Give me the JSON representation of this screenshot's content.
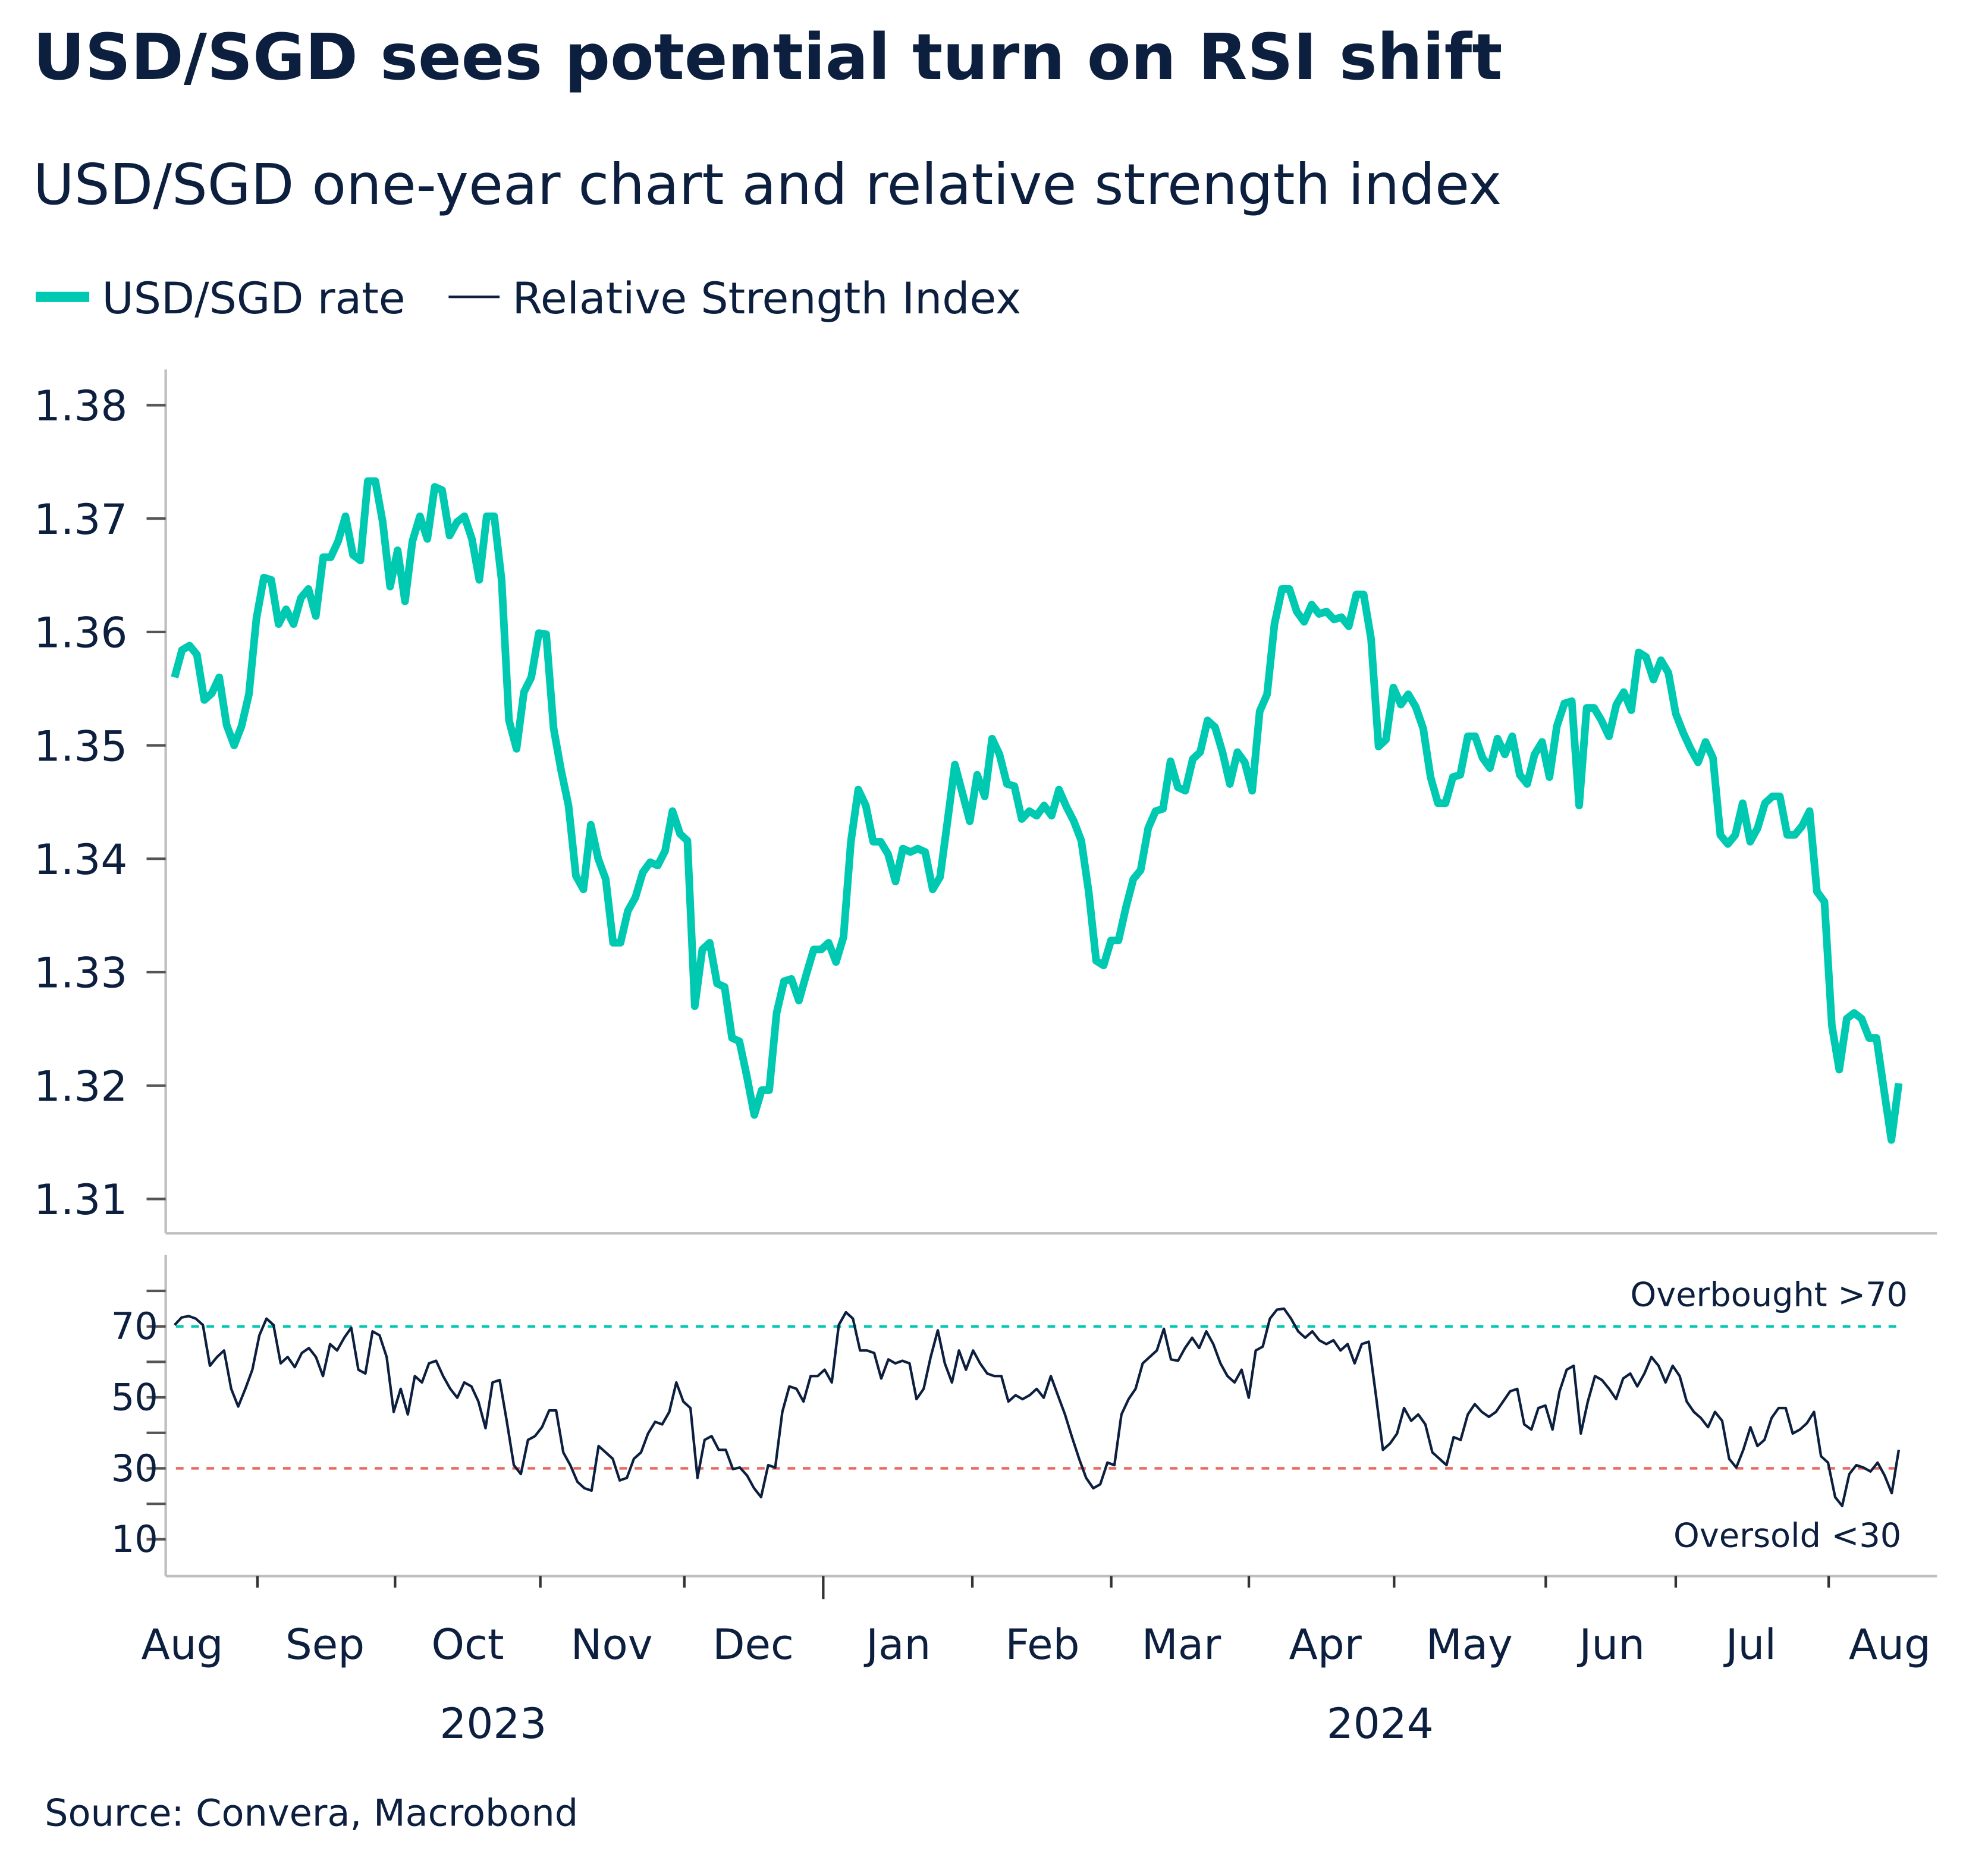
{
  "title": "USD/SGD sees potential turn on RSI shift",
  "subtitle": "USD/SGD one-year chart and relative strength index",
  "source": "Source: Convera, Macrobond",
  "colors": {
    "rate": "#00c9b1",
    "rsi": "#0c1f3f",
    "overbought": "#00c9b1",
    "oversold": "#e8695e",
    "axis": "#bfbfbf"
  },
  "chart_data": [
    {
      "type": "line",
      "panel": "top",
      "legend": [
        {
          "label": "USD/SGD rate"
        },
        {
          "label": "Relative Strength Index"
        }
      ],
      "legend_placement": "top-left",
      "date_range": [
        "2023-08-14",
        "2024-08-15"
      ],
      "ylim": [
        1.307,
        1.383
      ],
      "yticks": [
        "1.31",
        "1.32",
        "1.33",
        "1.34",
        "1.35",
        "1.36",
        "1.37",
        "1.38"
      ],
      "grid": false,
      "series": [
        {
          "name": "USD/SGD rate",
          "values": [
            1.356,
            1.3584,
            1.3588,
            1.358,
            1.354,
            1.3546,
            1.356,
            1.3518,
            1.35,
            1.3517,
            1.3545,
            1.3612,
            1.3648,
            1.3646,
            1.3607,
            1.362,
            1.3607,
            1.363,
            1.3638,
            1.3614,
            1.3666,
            1.3666,
            1.368,
            1.3702,
            1.3668,
            1.3663,
            1.3733,
            1.3733,
            1.3697,
            1.364,
            1.3672,
            1.3627,
            1.368,
            1.3702,
            1.3682,
            1.3728,
            1.3725,
            1.3685,
            1.3697,
            1.3702,
            1.3682,
            1.3646,
            1.3702,
            1.3702,
            1.3646,
            1.3522,
            1.3497,
            1.3547,
            1.356,
            1.3599,
            1.3598,
            1.3515,
            1.3478,
            1.3447,
            1.3385,
            1.3373,
            1.343,
            1.34,
            1.3382,
            1.3326,
            1.3326,
            1.3354,
            1.3366,
            1.3388,
            1.3397,
            1.3394,
            1.3407,
            1.3442,
            1.3422,
            1.3416,
            1.327,
            1.332,
            1.3326,
            1.329,
            1.3287,
            1.3242,
            1.3239,
            1.3208,
            1.3174,
            1.3196,
            1.3196,
            1.3264,
            1.3292,
            1.3294,
            1.3275,
            1.3298,
            1.332,
            1.332,
            1.3326,
            1.3309,
            1.3331,
            1.3415,
            1.3461,
            1.3447,
            1.3415,
            1.3415,
            1.3404,
            1.338,
            1.3409,
            1.3406,
            1.3409,
            1.3406,
            1.3373,
            1.3384,
            1.3433,
            1.3483,
            1.3458,
            1.3433,
            1.3474,
            1.3455,
            1.3506,
            1.3492,
            1.3466,
            1.3464,
            1.3435,
            1.3442,
            1.3438,
            1.3447,
            1.3438,
            1.3461,
            1.3446,
            1.3433,
            1.3416,
            1.3371,
            1.331,
            1.3306,
            1.3328,
            1.3328,
            1.3357,
            1.3382,
            1.339,
            1.3427,
            1.3442,
            1.3444,
            1.3486,
            1.3463,
            1.346,
            1.3488,
            1.3494,
            1.3522,
            1.3516,
            1.3494,
            1.3466,
            1.3494,
            1.3485,
            1.346,
            1.353,
            1.3545,
            1.3607,
            1.3638,
            1.3638,
            1.3618,
            1.3609,
            1.3624,
            1.3616,
            1.3618,
            1.3611,
            1.3613,
            1.3605,
            1.3633,
            1.3633,
            1.3594,
            1.3499,
            1.3505,
            1.3551,
            1.3536,
            1.3545,
            1.3534,
            1.3515,
            1.3472,
            1.3449,
            1.3449,
            1.3472,
            1.3474,
            1.3508,
            1.3508,
            1.3489,
            1.348,
            1.3506,
            1.3492,
            1.3508,
            1.3474,
            1.3466,
            1.3492,
            1.3503,
            1.3472,
            1.3517,
            1.3537,
            1.3539,
            1.3447,
            1.3533,
            1.3533,
            1.3522,
            1.3508,
            1.3536,
            1.3547,
            1.3531,
            1.3582,
            1.3578,
            1.3558,
            1.3575,
            1.3564,
            1.3528,
            1.3511,
            1.3497,
            1.3485,
            1.3503,
            1.3489,
            1.3421,
            1.3413,
            1.3421,
            1.3449,
            1.3415,
            1.3427,
            1.3449,
            1.3455,
            1.3455,
            1.3421,
            1.3421,
            1.3429,
            1.3442,
            1.3371,
            1.3362,
            1.3253,
            1.3214,
            1.3259,
            1.3264,
            1.3259,
            1.3242,
            1.3242,
            1.3197,
            1.3152,
            1.3202
          ]
        }
      ]
    },
    {
      "type": "line",
      "panel": "bottom",
      "date_range": [
        "2023-08-14",
        "2024-08-15"
      ],
      "ylim": [
        0,
        90
      ],
      "yticks": [
        "10",
        "30",
        "50",
        "70"
      ],
      "minor_ticks": [
        20,
        40,
        60,
        80
      ],
      "reference_lines": [
        {
          "value": 70,
          "label": "Overbought >70",
          "color": "#00c9b1",
          "style": "dashed"
        },
        {
          "value": 30,
          "label": "Oversold <30",
          "color": "#e8695e",
          "style": "dashed"
        }
      ],
      "series": [
        {
          "name": "Relative Strength Index",
          "values": [
            70.4,
            72.5,
            72.9,
            72.2,
            70.4,
            58.9,
            61.4,
            63.2,
            52.4,
            47.4,
            52.4,
            57.8,
            67.5,
            72.2,
            70.4,
            59.6,
            61.4,
            58.5,
            62.5,
            63.9,
            61.4,
            56,
            65,
            63.2,
            66.8,
            69.6,
            57.8,
            56.7,
            68.6,
            67.5,
            61.4,
            45.9,
            52.4,
            45.2,
            56,
            54.2,
            59.6,
            60.3,
            56,
            52.4,
            49.9,
            54.2,
            53.1,
            48.8,
            41.3,
            54.2,
            54.9,
            43.4,
            30.9,
            28.4,
            38,
            39.1,
            41.6,
            46.3,
            46.3,
            34.5,
            30.9,
            26.2,
            24.4,
            23.7,
            36.3,
            34.5,
            32.7,
            26.6,
            27.3,
            32.7,
            34.5,
            39.8,
            43.1,
            42.4,
            45.9,
            54.2,
            48.8,
            47,
            27.3,
            38,
            39.1,
            35.2,
            35.2,
            29.8,
            30.2,
            28,
            24.4,
            21.9,
            30.9,
            30.2,
            45.9,
            53.1,
            52.4,
            48.8,
            56,
            56,
            57.8,
            54.2,
            70.4,
            74,
            72.2,
            63.2,
            63.2,
            62.5,
            55.3,
            60.7,
            59.6,
            60.3,
            59.6,
            49.5,
            52.4,
            61.4,
            68.9,
            59.6,
            54.2,
            63.2,
            57.8,
            63.2,
            59.6,
            56.7,
            56,
            56,
            48.8,
            50.6,
            49.5,
            50.6,
            52.4,
            49.9,
            56,
            50.6,
            45.2,
            38.8,
            32.7,
            27.3,
            24.4,
            25.5,
            31.6,
            30.9,
            45.2,
            49.5,
            52.4,
            59.6,
            61.4,
            63.2,
            69.3,
            60.7,
            60.3,
            63.9,
            66.8,
            63.9,
            68.6,
            65,
            59.6,
            56,
            54.2,
            57.8,
            49.9,
            63.2,
            64.3,
            72.2,
            74.7,
            75,
            72.2,
            68.6,
            66.8,
            68.6,
            66.1,
            65,
            66.1,
            63.2,
            65,
            59.6,
            65,
            65.7,
            50.6,
            35.2,
            37,
            39.8,
            47,
            43.4,
            45.2,
            42.4,
            34.5,
            32.7,
            30.9,
            38.8,
            38,
            45.2,
            48.1,
            45.9,
            44.5,
            45.9,
            48.8,
            51.7,
            52.4,
            42.4,
            40.9,
            47,
            47.7,
            40.9,
            51.7,
            57.8,
            58.9,
            39.8,
            48.8,
            56,
            54.9,
            52.4,
            49.5,
            55.3,
            56.7,
            53.1,
            56.7,
            61.4,
            58.9,
            54.2,
            58.9,
            56,
            48.8,
            45.9,
            44.2,
            41.6,
            45.9,
            43.4,
            32.7,
            30.2,
            35.2,
            41.6,
            36.3,
            38,
            44.2,
            47,
            47,
            39.8,
            40.9,
            42.7,
            45.9,
            33.4,
            31.6,
            21.9,
            19.4,
            28.4,
            30.9,
            30.2,
            29.1,
            31.6,
            28,
            23,
            35.2
          ]
        }
      ]
    }
  ],
  "x_axis": {
    "months": [
      "Aug",
      "Sep",
      "Oct",
      "Nov",
      "Dec",
      "Jan",
      "Feb",
      "Mar",
      "Apr",
      "May",
      "Jun",
      "Jul",
      "Aug"
    ],
    "years": [
      "2023",
      "2024"
    ]
  }
}
